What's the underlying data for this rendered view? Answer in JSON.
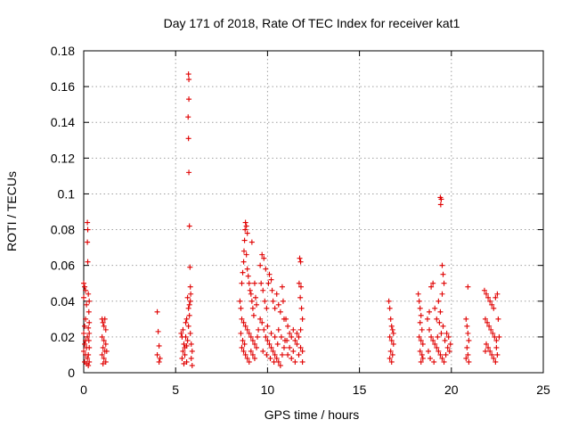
{
  "chart_data": {
    "type": "scatter",
    "title": "Day 171 of 2018, Rate Of TEC Index for receiver kat1",
    "xlabel": "GPS time / hours",
    "ylabel": "ROTI / TECUs",
    "xlim": [
      0,
      25
    ],
    "ylim": [
      0,
      0.18
    ],
    "x_ticks": [
      "0",
      "5",
      "10",
      "15",
      "20",
      "25"
    ],
    "y_ticks": [
      "0",
      "0.02",
      "0.04",
      "0.06",
      "0.08",
      "0.1",
      "0.12",
      "0.14",
      "0.16",
      "0.18"
    ],
    "grid": true,
    "marker": "+",
    "color": "#e00000",
    "series": [
      {
        "name": "ROTI",
        "points": [
          [
            0.0,
            0.05
          ],
          [
            0.05,
            0.048
          ],
          [
            0.1,
            0.046
          ],
          [
            0.0,
            0.042
          ],
          [
            0.15,
            0.038
          ],
          [
            0.1,
            0.03
          ],
          [
            0.05,
            0.026
          ],
          [
            0.0,
            0.022
          ],
          [
            0.2,
            0.02
          ],
          [
            0.1,
            0.018
          ],
          [
            0.05,
            0.016
          ],
          [
            0.15,
            0.014
          ],
          [
            0.0,
            0.012
          ],
          [
            0.1,
            0.01
          ],
          [
            0.2,
            0.008
          ],
          [
            0.05,
            0.006
          ],
          [
            0.15,
            0.005
          ],
          [
            0.25,
            0.004
          ],
          [
            0.2,
            0.084
          ],
          [
            0.22,
            0.08
          ],
          [
            0.2,
            0.073
          ],
          [
            0.22,
            0.062
          ],
          [
            0.25,
            0.044
          ],
          [
            0.3,
            0.04
          ],
          [
            0.28,
            0.034
          ],
          [
            0.3,
            0.028
          ],
          [
            0.25,
            0.025
          ],
          [
            0.3,
            0.022
          ],
          [
            0.28,
            0.018
          ],
          [
            0.3,
            0.014
          ],
          [
            0.25,
            0.01
          ],
          [
            0.3,
            0.006
          ],
          [
            1.0,
            0.03
          ],
          [
            1.05,
            0.028
          ],
          [
            1.1,
            0.026
          ],
          [
            1.15,
            0.03
          ],
          [
            1.2,
            0.024
          ],
          [
            1.0,
            0.02
          ],
          [
            1.1,
            0.018
          ],
          [
            1.2,
            0.016
          ],
          [
            1.05,
            0.014
          ],
          [
            1.15,
            0.012
          ],
          [
            1.0,
            0.01
          ],
          [
            1.1,
            0.008
          ],
          [
            1.2,
            0.006
          ],
          [
            1.05,
            0.005
          ],
          [
            1.25,
            0.012
          ],
          [
            4.0,
            0.034
          ],
          [
            4.05,
            0.023
          ],
          [
            4.1,
            0.015
          ],
          [
            4.0,
            0.01
          ],
          [
            4.15,
            0.008
          ],
          [
            4.1,
            0.006
          ],
          [
            5.3,
            0.022
          ],
          [
            5.35,
            0.02
          ],
          [
            5.4,
            0.024
          ],
          [
            5.45,
            0.016
          ],
          [
            5.5,
            0.014
          ],
          [
            5.55,
            0.028
          ],
          [
            5.6,
            0.03
          ],
          [
            5.4,
            0.012
          ],
          [
            5.5,
            0.01
          ],
          [
            5.35,
            0.008
          ],
          [
            5.6,
            0.006
          ],
          [
            5.45,
            0.005
          ],
          [
            5.65,
            0.018
          ],
          [
            5.7,
            0.026
          ],
          [
            5.75,
            0.032
          ],
          [
            5.7,
            0.036
          ],
          [
            5.8,
            0.04
          ],
          [
            5.65,
            0.042
          ],
          [
            5.75,
            0.038
          ],
          [
            5.8,
            0.022
          ],
          [
            5.85,
            0.016
          ],
          [
            5.9,
            0.012
          ],
          [
            5.85,
            0.008
          ],
          [
            5.9,
            0.004
          ],
          [
            5.55,
            0.02
          ],
          [
            5.6,
            0.015
          ],
          [
            5.7,
            0.167
          ],
          [
            5.72,
            0.164
          ],
          [
            5.72,
            0.153
          ],
          [
            5.68,
            0.143
          ],
          [
            5.7,
            0.131
          ],
          [
            5.72,
            0.112
          ],
          [
            5.75,
            0.082
          ],
          [
            5.78,
            0.059
          ],
          [
            5.8,
            0.048
          ],
          [
            5.82,
            0.044
          ],
          [
            8.5,
            0.04
          ],
          [
            8.55,
            0.036
          ],
          [
            8.6,
            0.05
          ],
          [
            8.65,
            0.056
          ],
          [
            8.7,
            0.062
          ],
          [
            8.72,
            0.068
          ],
          [
            8.75,
            0.074
          ],
          [
            8.78,
            0.08
          ],
          [
            8.8,
            0.084
          ],
          [
            8.85,
            0.082
          ],
          [
            8.9,
            0.078
          ],
          [
            8.85,
            0.066
          ],
          [
            8.9,
            0.058
          ],
          [
            8.95,
            0.054
          ],
          [
            9.0,
            0.05
          ],
          [
            9.05,
            0.046
          ],
          [
            9.1,
            0.044
          ],
          [
            9.15,
            0.04
          ],
          [
            9.2,
            0.036
          ],
          [
            9.25,
            0.032
          ],
          [
            9.3,
            0.05
          ],
          [
            9.35,
            0.042
          ],
          [
            9.4,
            0.038
          ],
          [
            8.6,
            0.03
          ],
          [
            8.7,
            0.028
          ],
          [
            8.8,
            0.026
          ],
          [
            8.9,
            0.024
          ],
          [
            9.0,
            0.022
          ],
          [
            9.1,
            0.02
          ],
          [
            9.2,
            0.018
          ],
          [
            9.3,
            0.016
          ],
          [
            8.6,
            0.014
          ],
          [
            8.7,
            0.012
          ],
          [
            8.8,
            0.01
          ],
          [
            8.9,
            0.008
          ],
          [
            9.0,
            0.006
          ],
          [
            9.1,
            0.012
          ],
          [
            9.2,
            0.01
          ],
          [
            9.3,
            0.008
          ],
          [
            9.4,
            0.014
          ],
          [
            9.45,
            0.02
          ],
          [
            8.55,
            0.022
          ],
          [
            8.65,
            0.018
          ],
          [
            8.75,
            0.016
          ],
          [
            9.5,
            0.024
          ],
          [
            9.15,
            0.073
          ],
          [
            9.6,
            0.06
          ],
          [
            9.7,
            0.066
          ],
          [
            9.8,
            0.064
          ],
          [
            9.9,
            0.058
          ],
          [
            9.65,
            0.05
          ],
          [
            9.75,
            0.046
          ],
          [
            9.85,
            0.04
          ],
          [
            9.95,
            0.036
          ],
          [
            10.05,
            0.05
          ],
          [
            10.1,
            0.055
          ],
          [
            10.2,
            0.052
          ],
          [
            10.25,
            0.046
          ],
          [
            10.3,
            0.04
          ],
          [
            10.4,
            0.036
          ],
          [
            10.5,
            0.044
          ],
          [
            10.6,
            0.038
          ],
          [
            10.7,
            0.034
          ],
          [
            10.8,
            0.048
          ],
          [
            10.85,
            0.04
          ],
          [
            10.9,
            0.03
          ],
          [
            9.6,
            0.03
          ],
          [
            9.7,
            0.028
          ],
          [
            9.8,
            0.024
          ],
          [
            9.9,
            0.02
          ],
          [
            10.0,
            0.018
          ],
          [
            10.1,
            0.016
          ],
          [
            10.2,
            0.014
          ],
          [
            10.3,
            0.012
          ],
          [
            10.4,
            0.01
          ],
          [
            10.5,
            0.008
          ],
          [
            10.6,
            0.006
          ],
          [
            10.7,
            0.004
          ],
          [
            10.8,
            0.01
          ],
          [
            10.9,
            0.014
          ],
          [
            10.0,
            0.026
          ],
          [
            10.2,
            0.022
          ],
          [
            10.4,
            0.02
          ],
          [
            10.6,
            0.024
          ],
          [
            9.75,
            0.012
          ],
          [
            9.95,
            0.01
          ],
          [
            10.15,
            0.008
          ],
          [
            10.35,
            0.006
          ],
          [
            10.55,
            0.016
          ],
          [
            10.75,
            0.02
          ],
          [
            10.95,
            0.018
          ],
          [
            11.0,
            0.03
          ],
          [
            11.1,
            0.026
          ],
          [
            11.2,
            0.022
          ],
          [
            11.3,
            0.02
          ],
          [
            11.4,
            0.024
          ],
          [
            11.5,
            0.018
          ],
          [
            11.6,
            0.016
          ],
          [
            11.7,
            0.02
          ],
          [
            11.8,
            0.014
          ],
          [
            11.9,
            0.012
          ],
          [
            11.1,
            0.01
          ],
          [
            11.3,
            0.008
          ],
          [
            11.5,
            0.006
          ],
          [
            11.7,
            0.01
          ],
          [
            11.9,
            0.006
          ],
          [
            11.2,
            0.014
          ],
          [
            11.4,
            0.012
          ],
          [
            11.6,
            0.022
          ],
          [
            11.8,
            0.024
          ],
          [
            11.05,
            0.018
          ],
          [
            11.75,
            0.064
          ],
          [
            11.8,
            0.062
          ],
          [
            11.72,
            0.05
          ],
          [
            11.82,
            0.048
          ],
          [
            11.78,
            0.042
          ],
          [
            11.85,
            0.036
          ],
          [
            11.9,
            0.03
          ],
          [
            16.6,
            0.04
          ],
          [
            16.65,
            0.036
          ],
          [
            16.7,
            0.03
          ],
          [
            16.75,
            0.026
          ],
          [
            16.8,
            0.024
          ],
          [
            16.65,
            0.02
          ],
          [
            16.75,
            0.018
          ],
          [
            16.85,
            0.016
          ],
          [
            16.7,
            0.012
          ],
          [
            16.8,
            0.01
          ],
          [
            16.65,
            0.008
          ],
          [
            16.75,
            0.006
          ],
          [
            16.85,
            0.022
          ],
          [
            18.2,
            0.044
          ],
          [
            18.25,
            0.04
          ],
          [
            18.3,
            0.036
          ],
          [
            18.35,
            0.032
          ],
          [
            18.3,
            0.028
          ],
          [
            18.4,
            0.024
          ],
          [
            18.25,
            0.02
          ],
          [
            18.35,
            0.018
          ],
          [
            18.45,
            0.016
          ],
          [
            18.3,
            0.012
          ],
          [
            18.4,
            0.01
          ],
          [
            18.35,
            0.006
          ],
          [
            18.45,
            0.008
          ],
          [
            18.7,
            0.03
          ],
          [
            18.8,
            0.034
          ],
          [
            18.9,
            0.048
          ],
          [
            19.0,
            0.05
          ],
          [
            19.1,
            0.036
          ],
          [
            19.2,
            0.03
          ],
          [
            19.3,
            0.04
          ],
          [
            19.4,
            0.034
          ],
          [
            19.5,
            0.044
          ],
          [
            19.6,
            0.05
          ],
          [
            18.8,
            0.024
          ],
          [
            18.9,
            0.02
          ],
          [
            19.0,
            0.018
          ],
          [
            19.1,
            0.016
          ],
          [
            19.2,
            0.014
          ],
          [
            19.3,
            0.012
          ],
          [
            19.4,
            0.01
          ],
          [
            19.5,
            0.008
          ],
          [
            19.6,
            0.006
          ],
          [
            19.7,
            0.01
          ],
          [
            19.8,
            0.014
          ],
          [
            19.9,
            0.012
          ],
          [
            18.75,
            0.012
          ],
          [
            18.85,
            0.008
          ],
          [
            19.05,
            0.006
          ],
          [
            19.25,
            0.02
          ],
          [
            19.45,
            0.022
          ],
          [
            19.65,
            0.018
          ],
          [
            19.75,
            0.022
          ],
          [
            19.85,
            0.02
          ],
          [
            19.95,
            0.016
          ],
          [
            19.55,
            0.026
          ],
          [
            19.35,
            0.028
          ],
          [
            19.4,
            0.098
          ],
          [
            19.45,
            0.097
          ],
          [
            19.42,
            0.094
          ],
          [
            19.5,
            0.06
          ],
          [
            19.55,
            0.055
          ],
          [
            20.8,
            0.03
          ],
          [
            20.85,
            0.026
          ],
          [
            20.9,
            0.022
          ],
          [
            20.95,
            0.018
          ],
          [
            20.85,
            0.014
          ],
          [
            20.9,
            0.01
          ],
          [
            20.95,
            0.006
          ],
          [
            20.8,
            0.008
          ],
          [
            20.9,
            0.048
          ],
          [
            21.8,
            0.046
          ],
          [
            21.9,
            0.044
          ],
          [
            22.0,
            0.042
          ],
          [
            22.1,
            0.04
          ],
          [
            22.2,
            0.038
          ],
          [
            22.3,
            0.036
          ],
          [
            22.4,
            0.042
          ],
          [
            22.5,
            0.044
          ],
          [
            21.85,
            0.03
          ],
          [
            21.95,
            0.028
          ],
          [
            22.05,
            0.026
          ],
          [
            22.15,
            0.024
          ],
          [
            22.25,
            0.022
          ],
          [
            22.35,
            0.02
          ],
          [
            22.45,
            0.018
          ],
          [
            21.9,
            0.016
          ],
          [
            22.0,
            0.014
          ],
          [
            22.1,
            0.012
          ],
          [
            22.2,
            0.01
          ],
          [
            22.3,
            0.008
          ],
          [
            22.4,
            0.006
          ],
          [
            22.5,
            0.01
          ],
          [
            21.85,
            0.012
          ],
          [
            22.45,
            0.014
          ],
          [
            22.55,
            0.03
          ],
          [
            22.6,
            0.02
          ]
        ]
      }
    ]
  }
}
